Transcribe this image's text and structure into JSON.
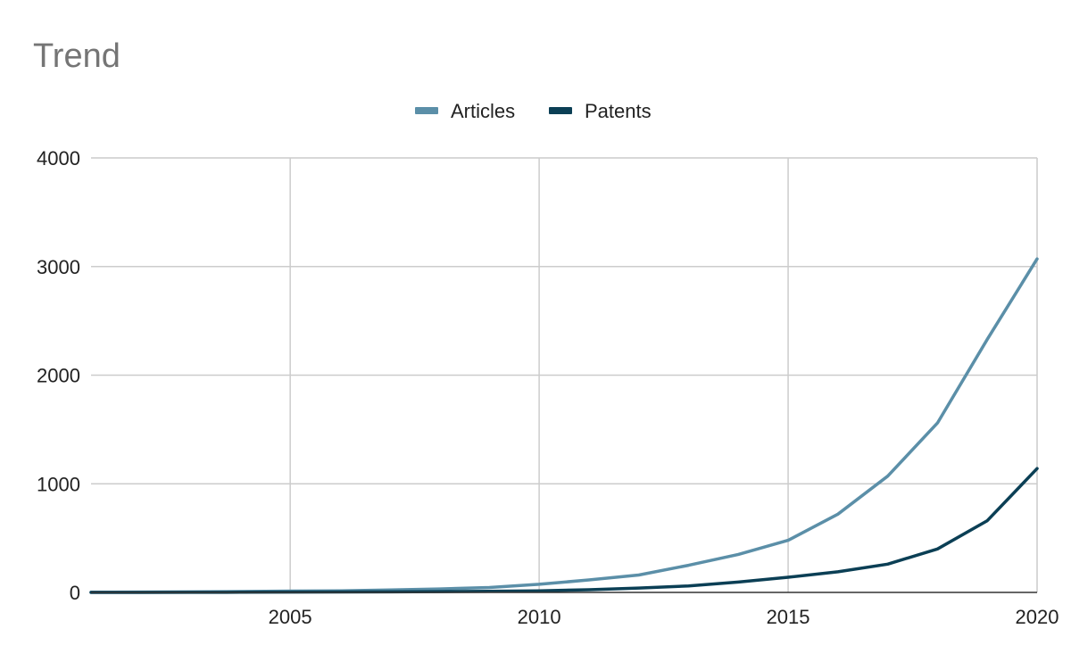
{
  "chart_data": {
    "type": "line",
    "title": "Trend",
    "xlabel": "",
    "ylabel": "",
    "x": [
      2001,
      2002,
      2003,
      2004,
      2005,
      2006,
      2007,
      2008,
      2009,
      2010,
      2011,
      2012,
      2013,
      2014,
      2015,
      2016,
      2017,
      2018,
      2019,
      2020
    ],
    "xlim": [
      2001,
      2020
    ],
    "ylim": [
      0,
      4000
    ],
    "xticks": [
      2005,
      2010,
      2015,
      2020
    ],
    "xtick_labels": [
      "2005",
      "2010",
      "2015",
      "2020"
    ],
    "yticks": [
      0,
      1000,
      2000,
      3000,
      4000
    ],
    "ytick_labels": [
      "0",
      "1000",
      "2000",
      "3000",
      "4000"
    ],
    "grid": true,
    "legend_position": "top-center",
    "series": [
      {
        "name": "Articles",
        "color": "#5b8fa8",
        "values": [
          2,
          3,
          5,
          8,
          12,
          15,
          22,
          32,
          45,
          75,
          115,
          160,
          250,
          350,
          480,
          720,
          1070,
          1560,
          2330,
          3070
        ]
      },
      {
        "name": "Patents",
        "color": "#0b3f55",
        "values": [
          0,
          0,
          1,
          2,
          3,
          4,
          5,
          7,
          10,
          15,
          25,
          40,
          60,
          95,
          140,
          190,
          260,
          400,
          660,
          1140
        ]
      }
    ]
  }
}
